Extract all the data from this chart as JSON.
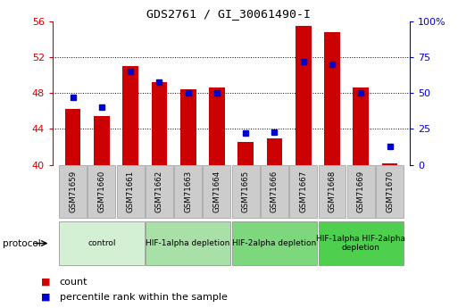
{
  "title": "GDS2761 / GI_30061490-I",
  "samples": [
    "GSM71659",
    "GSM71660",
    "GSM71661",
    "GSM71662",
    "GSM71663",
    "GSM71664",
    "GSM71665",
    "GSM71666",
    "GSM71667",
    "GSM71668",
    "GSM71669",
    "GSM71670"
  ],
  "counts": [
    46.2,
    45.4,
    51.0,
    49.2,
    48.4,
    48.6,
    42.6,
    42.9,
    55.5,
    54.8,
    48.6,
    40.2
  ],
  "percentile_ranks": [
    47,
    40,
    65,
    58,
    50,
    50,
    22,
    23,
    72,
    70,
    50,
    13
  ],
  "ymin": 40,
  "ymax": 56,
  "y_ticks": [
    40,
    44,
    48,
    52,
    56
  ],
  "y2_ticks": [
    0,
    25,
    50,
    75,
    100
  ],
  "bar_color": "#cc0000",
  "dot_color": "#0000cc",
  "bar_width": 0.55,
  "group_labels": [
    "control",
    "HIF-1alpha depletion",
    "HIF-2alpha depletion",
    "HIF-1alpha HIF-2alpha\ndepletion"
  ],
  "group_starts": [
    0,
    3,
    6,
    9
  ],
  "group_ends": [
    2,
    5,
    8,
    11
  ],
  "group_colors": [
    "#d4f0d4",
    "#a8e0a8",
    "#7dd87d",
    "#4ecf4e"
  ],
  "protocol_label": "protocol",
  "legend_count_label": "count",
  "legend_percentile_label": "percentile rank within the sample",
  "axis_color_left": "#cc0000",
  "axis_color_right": "#0000cc",
  "grid_lines": [
    44,
    48,
    52
  ],
  "sample_box_color": "#cccccc",
  "sample_box_edge": "#999999"
}
